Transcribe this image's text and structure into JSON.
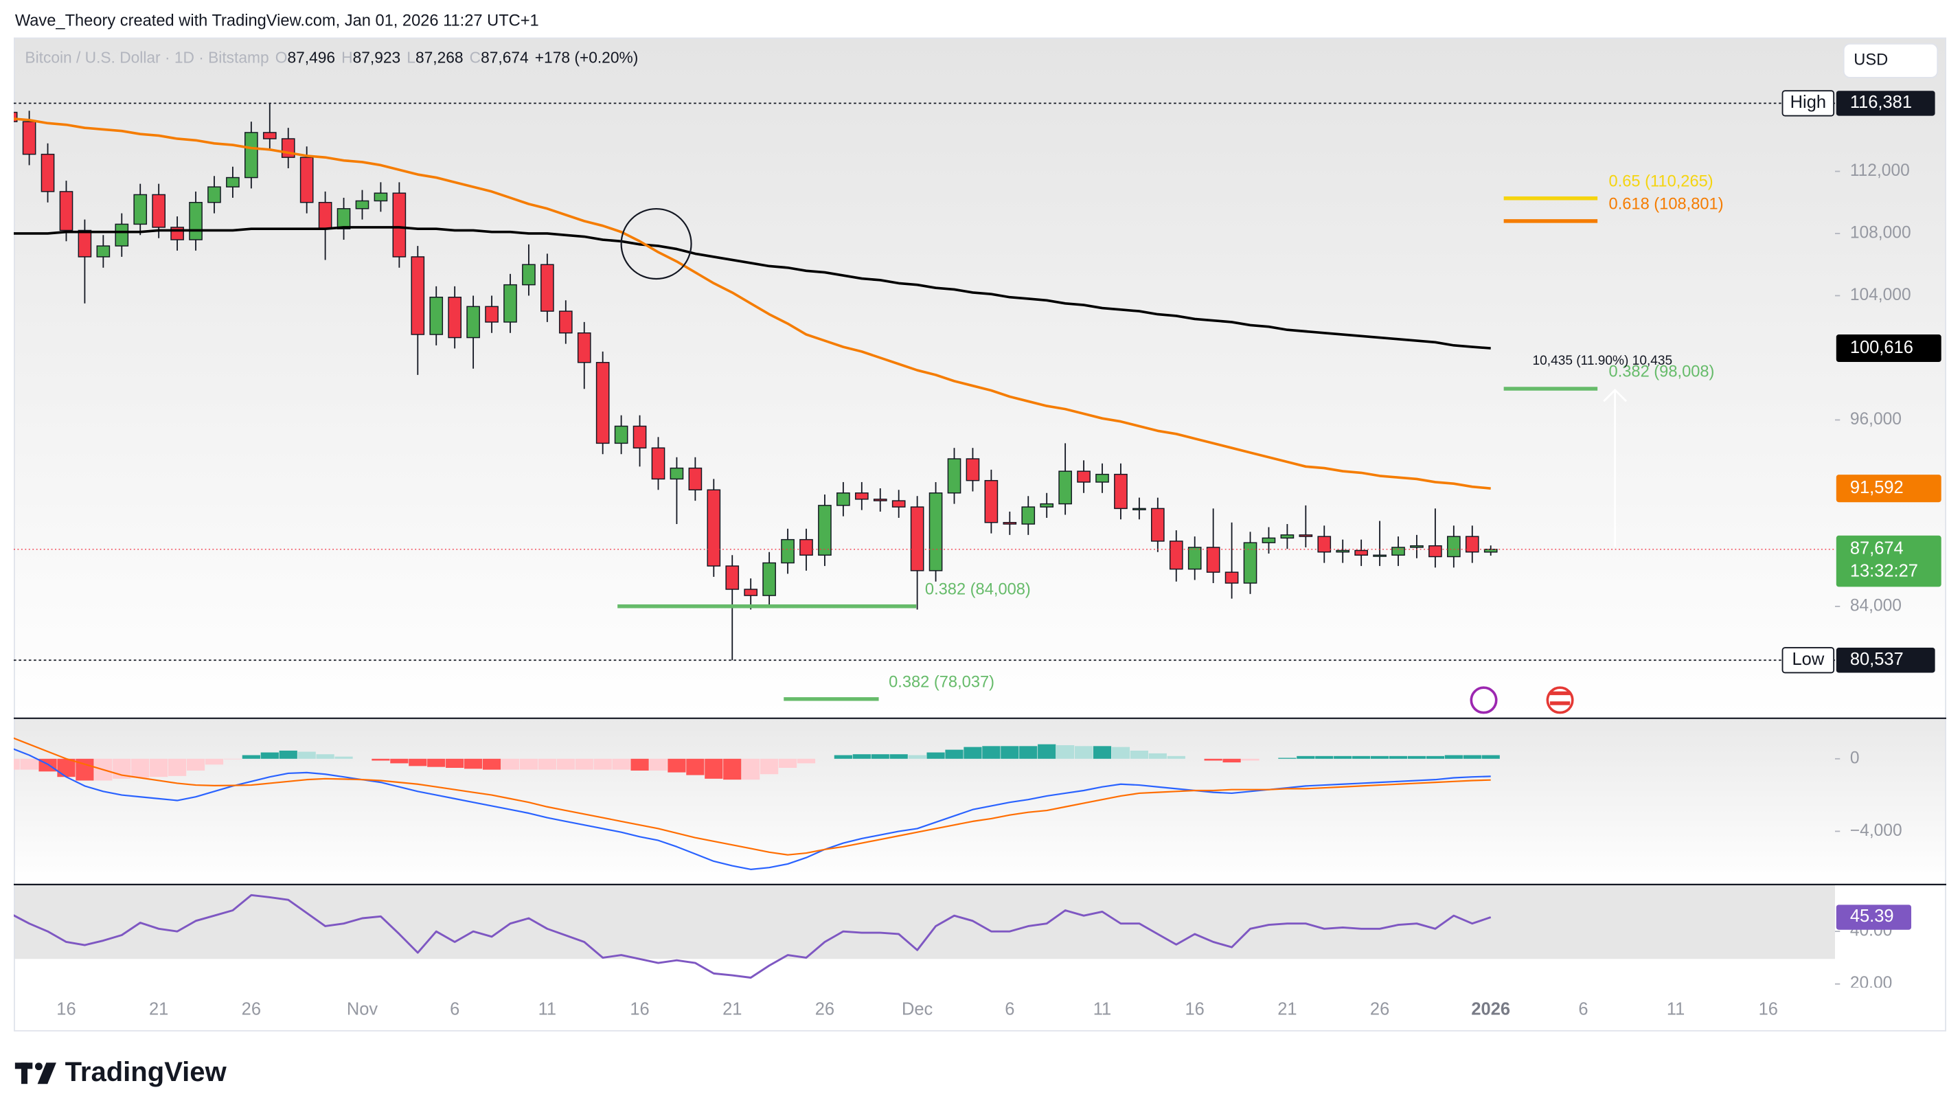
{
  "header": {
    "credit": "Wave_Theory created with TradingView.com, Jan 01, 2026 11:27 UTC+1"
  },
  "footer": {
    "logo": "TradingView"
  },
  "chart_data": {
    "type": "candlestick",
    "legend": {
      "symbol": "Bitcoin / U.S. Dollar · 1D · Bitstamp",
      "ohlc": [
        {
          "key": "O",
          "value": "87,496"
        },
        {
          "key": "H",
          "value": "87,923"
        },
        {
          "key": "L",
          "value": "87,268"
        },
        {
          "key": "C",
          "value": "87,674"
        }
      ],
      "change": "+178 (+0.20%)"
    },
    "currency": "USD",
    "categories": [
      null,
      null,
      null,
      "16",
      null,
      null,
      null,
      null,
      "21",
      null,
      null,
      null,
      null,
      "26",
      null,
      null,
      null,
      null,
      null,
      "Nov",
      null,
      null,
      null,
      null,
      "6",
      null,
      null,
      null,
      null,
      "11",
      null,
      null,
      null,
      null,
      "16",
      null,
      null,
      null,
      null,
      "21",
      null,
      null,
      null,
      null,
      "26",
      null,
      null,
      null,
      null,
      "Dec",
      null,
      null,
      null,
      null,
      "6",
      null,
      null,
      null,
      null,
      "11",
      null,
      null,
      null,
      null,
      "16",
      null,
      null,
      null,
      null,
      "21",
      null,
      null,
      null,
      null,
      "26",
      null,
      null,
      null,
      null,
      null,
      "2026",
      null,
      null,
      null,
      null,
      "6",
      null,
      null,
      null,
      null,
      "11",
      null,
      null,
      null,
      null,
      "16",
      null,
      null,
      null
    ],
    "open": [
      115800,
      115200,
      113100,
      110700,
      108200,
      106500,
      107200,
      108600,
      110500,
      108400,
      107600,
      110000,
      111000,
      111600,
      114500,
      114100,
      112900,
      110000,
      108300,
      109600,
      110100,
      110600,
      106500,
      101500,
      103900,
      101300,
      103300,
      102300,
      104700,
      106000,
      103000,
      101600,
      99700,
      94500,
      95600,
      94200,
      92200,
      92900,
      91500,
      86600,
      85100,
      84700,
      86800,
      88300,
      87300,
      90500,
      91300,
      90900,
      90800,
      90400,
      86300,
      91300,
      93500,
      92100,
      89400,
      89300,
      90400,
      90600,
      92700,
      92000,
      92500,
      90300,
      90300,
      88200,
      86400,
      87800,
      86200,
      85500,
      88100,
      88400,
      88600,
      88500,
      87500,
      87600,
      87300,
      87300,
      87800,
      87900,
      87200,
      88500,
      87496,
      null,
      null,
      null,
      null,
      null,
      null,
      null,
      null,
      null,
      null,
      null,
      null,
      null,
      null,
      null,
      null,
      null,
      null
    ],
    "high": [
      116500,
      115900,
      113800,
      111400,
      108900,
      107900,
      109300,
      111200,
      111200,
      109100,
      110700,
      111700,
      112300,
      115200,
      116381,
      114800,
      113600,
      110700,
      110300,
      110800,
      111300,
      111300,
      107200,
      104600,
      104600,
      104000,
      104000,
      105400,
      107300,
      106700,
      103700,
      102300,
      100400,
      96300,
      96300,
      94900,
      93600,
      93600,
      92200,
      87300,
      85800,
      87500,
      89000,
      89000,
      91200,
      92000,
      92000,
      91600,
      91500,
      91100,
      92000,
      94200,
      94200,
      92800,
      90100,
      91100,
      91300,
      94500,
      93400,
      93200,
      93200,
      91000,
      91000,
      88900,
      88500,
      90300,
      89400,
      88800,
      89100,
      89300,
      90500,
      89200,
      88300,
      88300,
      89500,
      88500,
      88600,
      90300,
      89200,
      89200,
      87923,
      null,
      null,
      null,
      null,
      null,
      null,
      null,
      null,
      null,
      null,
      null,
      null,
      null,
      null,
      null,
      null,
      null,
      null
    ],
    "low": [
      114500,
      112400,
      110000,
      107500,
      103500,
      105800,
      106500,
      107900,
      107700,
      106900,
      106900,
      109300,
      110300,
      110900,
      113400,
      112200,
      109300,
      106300,
      107600,
      108900,
      109400,
      105800,
      98900,
      100800,
      100600,
      99300,
      101600,
      101600,
      104000,
      102300,
      100900,
      98000,
      93800,
      93800,
      93000,
      91500,
      89300,
      90800,
      85900,
      80537,
      83800,
      84000,
      86100,
      86300,
      86600,
      89800,
      90200,
      90100,
      89700,
      83800,
      85600,
      90600,
      91400,
      88700,
      88600,
      88600,
      89700,
      89900,
      91300,
      91300,
      89600,
      89600,
      87500,
      85600,
      85700,
      85500,
      84500,
      84800,
      87400,
      87700,
      87800,
      86800,
      86800,
      86600,
      86600,
      86600,
      87100,
      86500,
      86500,
      86800,
      87268,
      null,
      null,
      null,
      null,
      null,
      null,
      null,
      null,
      null,
      null,
      null,
      null,
      null,
      null,
      null,
      null,
      null,
      null
    ],
    "close": [
      115200,
      113100,
      110700,
      108200,
      106500,
      107200,
      108600,
      110500,
      108400,
      107600,
      110000,
      111000,
      111600,
      114500,
      114100,
      112900,
      110000,
      108300,
      109600,
      110100,
      110600,
      106500,
      101500,
      103900,
      101300,
      103300,
      102300,
      104700,
      106000,
      103000,
      101600,
      99700,
      94500,
      95600,
      94200,
      92200,
      92900,
      91500,
      86600,
      85100,
      84700,
      86800,
      88300,
      87300,
      90500,
      91300,
      90900,
      90800,
      90400,
      86300,
      91300,
      93500,
      92100,
      89400,
      89300,
      90400,
      90600,
      92700,
      92000,
      92500,
      90300,
      90300,
      88200,
      86400,
      87800,
      86200,
      85500,
      88100,
      88400,
      88600,
      88500,
      87500,
      87600,
      87300,
      87300,
      87800,
      87900,
      87200,
      88500,
      87500,
      87674,
      null,
      null,
      null,
      null,
      null,
      null,
      null,
      null,
      null,
      null,
      null,
      null,
      null,
      null,
      null,
      null,
      null,
      null
    ],
    "up_color": "#4caf50",
    "down_color": "#f23645",
    "ylim": [
      76840,
      120610
    ],
    "yticks": [
      {
        "value": 112000,
        "label": "112,000"
      },
      {
        "value": 108000,
        "label": "108,000"
      },
      {
        "value": 104000,
        "label": "104,000"
      },
      {
        "value": 96000,
        "label": "96,000"
      },
      {
        "value": 84000,
        "label": "84,000"
      }
    ],
    "moving_averages": [
      {
        "color": "#000000",
        "last_label": "100,616",
        "values": [
          108000,
          108000,
          108000,
          108100,
          108100,
          108100,
          108100,
          108100,
          108200,
          108200,
          108200,
          108200,
          108200,
          108300,
          108300,
          108300,
          108300,
          108300,
          108400,
          108400,
          108400,
          108400,
          108300,
          108300,
          108200,
          108200,
          108100,
          108100,
          108000,
          108000,
          107900,
          107800,
          107600,
          107500,
          107300,
          107200,
          107000,
          106700,
          106500,
          106300,
          106100,
          105900,
          105800,
          105600,
          105500,
          105300,
          105100,
          105000,
          104800,
          104700,
          104500,
          104400,
          104200,
          104100,
          103900,
          103800,
          103700,
          103500,
          103400,
          103200,
          103100,
          103000,
          102800,
          102700,
          102500,
          102400,
          102300,
          102100,
          102000,
          101800,
          101700,
          101600,
          101500,
          101400,
          101300,
          101200,
          101100,
          101000,
          100800,
          100700,
          100616,
          null,
          null,
          null,
          null,
          null,
          null,
          null,
          null,
          null,
          null,
          null,
          null,
          null,
          null,
          null,
          null,
          null,
          null
        ]
      },
      {
        "color": "#f57c00",
        "last_label": "91,592",
        "values": [
          115400,
          115300,
          115100,
          115000,
          114800,
          114700,
          114600,
          114400,
          114300,
          114100,
          114000,
          113800,
          113700,
          113500,
          113400,
          113200,
          113000,
          112900,
          112700,
          112600,
          112400,
          112100,
          111800,
          111600,
          111300,
          111000,
          110700,
          110300,
          109900,
          109600,
          109200,
          108800,
          108500,
          108100,
          107500,
          106800,
          106200,
          105500,
          104800,
          104200,
          103500,
          102800,
          102200,
          101500,
          101100,
          100700,
          100400,
          100000,
          99600,
          99200,
          98900,
          98500,
          98200,
          97900,
          97500,
          97200,
          96900,
          96700,
          96400,
          96100,
          95900,
          95600,
          95300,
          95100,
          94800,
          94500,
          94200,
          93900,
          93600,
          93300,
          93000,
          92900,
          92700,
          92600,
          92400,
          92300,
          92200,
          92000,
          91900,
          91700,
          91592,
          null,
          null,
          null,
          null,
          null,
          null,
          null,
          null,
          null,
          null,
          null,
          null,
          null,
          null,
          null,
          null,
          null,
          null
        ]
      }
    ],
    "last_price": {
      "label": "87,674",
      "countdown": "13:32:27"
    },
    "high_marker": {
      "label": "High",
      "value": 116381,
      "value_label": "116,381"
    },
    "low_marker": {
      "label": "Low",
      "value": 80537,
      "value_label": "80,537"
    },
    "fib_levels": [
      {
        "label": "0.65 (110,265)",
        "value": 110265,
        "color": "#f5d40f"
      },
      {
        "label": "0.618 (108,801)",
        "value": 108801,
        "color": "#f57c00"
      },
      {
        "label": "0.382 (98,008)",
        "value": 98008,
        "color": "#66bb6a"
      },
      {
        "label": "0.382 (84,008)",
        "value": 84008,
        "color": "#66bb6a"
      },
      {
        "label": "0.382 (78,037)",
        "value": 78037,
        "color": "#66bb6a"
      }
    ],
    "measure": {
      "label": "10,435 (11.90%) 10,435"
    },
    "macd": {
      "ylim": [
        -6900,
        2200
      ],
      "yticks": [
        0,
        {
          "value": -4000,
          "label": "−4,000"
        }
      ],
      "macd_color": "#2962ff",
      "signal_color": "#ff6d00",
      "hist_colors": {
        "up_rising": "#26a69a",
        "up_falling": "#b2dfdb",
        "down_falling": "#ff5252",
        "down_rising": "#ffcdd2"
      },
      "histogram": [
        -600,
        -600,
        -700,
        -1000,
        -1200,
        -1200,
        -1100,
        -1050,
        -1000,
        -950,
        -650,
        -320,
        -30,
        200,
        350,
        450,
        390,
        250,
        120,
        0,
        -100,
        -250,
        -400,
        -450,
        -500,
        -550,
        -600,
        -600,
        -600,
        -600,
        -600,
        -600,
        -600,
        -600,
        -650,
        -650,
        -750,
        -900,
        -1100,
        -1150,
        -1150,
        -850,
        -500,
        -250,
        0,
        200,
        250,
        250,
        250,
        200,
        350,
        500,
        650,
        700,
        700,
        700,
        800,
        750,
        700,
        700,
        650,
        450,
        300,
        150,
        0,
        -100,
        -200,
        -100,
        0,
        50,
        150,
        150,
        150,
        150,
        150,
        150,
        150,
        150,
        200,
        200,
        200,
        null,
        null,
        null,
        null,
        null,
        null,
        null,
        null,
        null,
        null,
        null,
        null,
        null,
        null,
        null,
        null,
        null,
        null
      ],
      "macd": [
        600,
        200,
        -300,
        -1000,
        -1500,
        -1800,
        -2000,
        -2100,
        -2200,
        -2300,
        -2100,
        -1800,
        -1500,
        -1250,
        -1000,
        -800,
        -760,
        -850,
        -1000,
        -1150,
        -1300,
        -1550,
        -1800,
        -2000,
        -2200,
        -2400,
        -2600,
        -2800,
        -3000,
        -3250,
        -3450,
        -3650,
        -3850,
        -4050,
        -4300,
        -4500,
        -4850,
        -5250,
        -5650,
        -5900,
        -6100,
        -6000,
        -5800,
        -5450,
        -5000,
        -4650,
        -4400,
        -4200,
        -4000,
        -3850,
        -3500,
        -3150,
        -2800,
        -2600,
        -2400,
        -2250,
        -2050,
        -1900,
        -1750,
        -1550,
        -1400,
        -1450,
        -1550,
        -1650,
        -1750,
        -1850,
        -1900,
        -1800,
        -1700,
        -1600,
        -1500,
        -1450,
        -1400,
        -1350,
        -1300,
        -1250,
        -1200,
        -1150,
        -1050,
        -1000,
        -970,
        null,
        null,
        null,
        null,
        null,
        null,
        null,
        null,
        null,
        null,
        null,
        null,
        null,
        null,
        null,
        null,
        null,
        null
      ],
      "signal": [
        1200,
        800,
        400,
        0,
        -300,
        -600,
        -900,
        -1050,
        -1200,
        -1350,
        -1450,
        -1480,
        -1470,
        -1450,
        -1350,
        -1250,
        -1150,
        -1100,
        -1120,
        -1150,
        -1200,
        -1300,
        -1400,
        -1550,
        -1700,
        -1850,
        -2000,
        -2200,
        -2400,
        -2650,
        -2850,
        -3050,
        -3250,
        -3450,
        -3650,
        -3850,
        -4100,
        -4350,
        -4550,
        -4750,
        -4950,
        -5150,
        -5300,
        -5200,
        -5000,
        -4850,
        -4650,
        -4450,
        -4250,
        -4050,
        -3850,
        -3650,
        -3450,
        -3300,
        -3100,
        -2950,
        -2850,
        -2650,
        -2450,
        -2250,
        -2050,
        -1900,
        -1850,
        -1800,
        -1750,
        -1750,
        -1700,
        -1700,
        -1700,
        -1650,
        -1650,
        -1600,
        -1550,
        -1500,
        -1450,
        -1400,
        -1350,
        -1300,
        -1250,
        -1200,
        -1170,
        null,
        null,
        null,
        null,
        null,
        null,
        null,
        null,
        null,
        null,
        null,
        null,
        null,
        null,
        null,
        null,
        null,
        null
      ]
    },
    "rsi": {
      "ylim": [
        18.6,
        57.6
      ],
      "yticks": [
        {
          "value": 40,
          "label": "40.00"
        },
        {
          "value": 20,
          "label": "20.00"
        }
      ],
      "color": "#7e57c2",
      "last_label": "45.39",
      "values": [
        46.7,
        43,
        40,
        36,
        34.8,
        36.5,
        38.6,
        43.3,
        41,
        40,
        44,
        46,
        48,
        53.8,
        53,
        52,
        47,
        42,
        43,
        45,
        45.7,
        39,
        31.9,
        40,
        36,
        40,
        38,
        43,
        45,
        41,
        38.5,
        36,
        30,
        31,
        29.5,
        28,
        29,
        28,
        24,
        23.3,
        22.4,
        27,
        31,
        30,
        36,
        40,
        39.5,
        39.5,
        39,
        32.9,
        42,
        46,
        44,
        40,
        40,
        42,
        43,
        48,
        46,
        47.5,
        43,
        43,
        39,
        35,
        39,
        36,
        34,
        41,
        42.5,
        43,
        43,
        41,
        41.5,
        41,
        41,
        42.5,
        43,
        41,
        46,
        43,
        45.39,
        null,
        null,
        null,
        null,
        null,
        null,
        null,
        null,
        null,
        null,
        null,
        null,
        null,
        null,
        null,
        null,
        null,
        null
      ]
    }
  }
}
